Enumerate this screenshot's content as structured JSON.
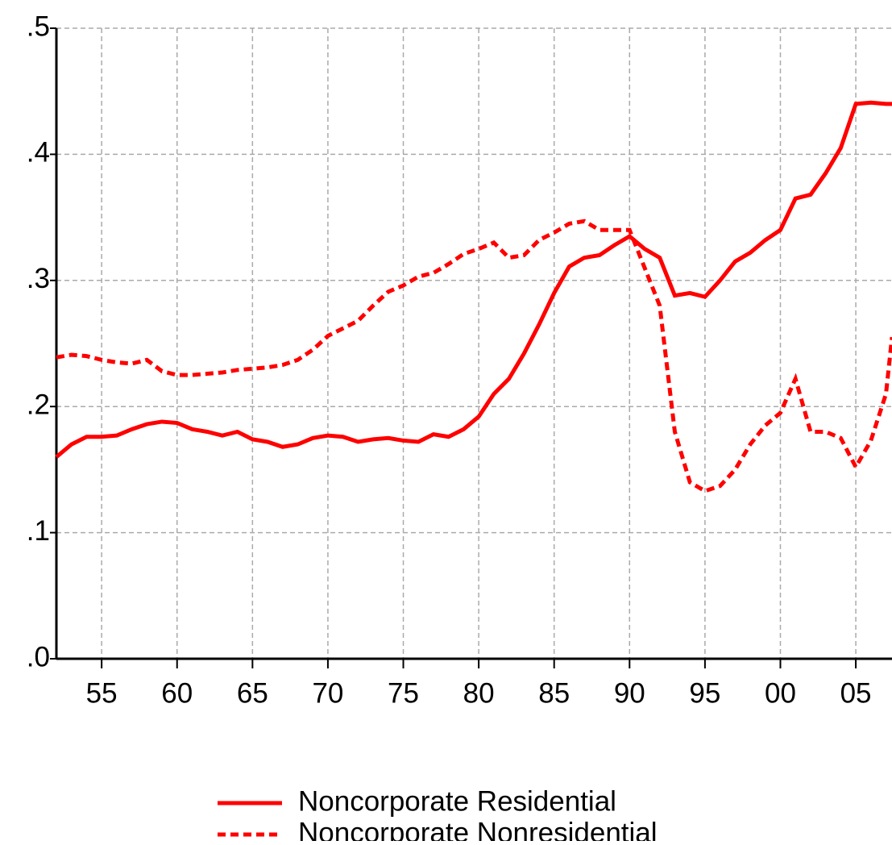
{
  "chart_data": {
    "type": "line",
    "x": [
      1952,
      1953,
      1954,
      1955,
      1956,
      1957,
      1958,
      1959,
      1960,
      1961,
      1962,
      1963,
      1964,
      1965,
      1966,
      1967,
      1968,
      1969,
      1970,
      1971,
      1972,
      1973,
      1974,
      1975,
      1976,
      1977,
      1978,
      1979,
      1980,
      1981,
      1982,
      1983,
      1984,
      1985,
      1986,
      1987,
      1988,
      1989,
      1990,
      1991,
      1992,
      1993,
      1994,
      1995,
      1996,
      1997,
      1998,
      1999,
      2000,
      2001,
      2002,
      2003,
      2004,
      2005,
      2006,
      2007,
      2007.4
    ],
    "series": [
      {
        "name": "Noncorporate Residential",
        "color": "#ff0000",
        "dash": false,
        "values": [
          0.16,
          0.17,
          0.176,
          0.176,
          0.177,
          0.182,
          0.186,
          0.188,
          0.187,
          0.182,
          0.18,
          0.177,
          0.18,
          0.174,
          0.172,
          0.168,
          0.17,
          0.175,
          0.177,
          0.176,
          0.172,
          0.174,
          0.175,
          0.173,
          0.172,
          0.178,
          0.176,
          0.182,
          0.192,
          0.21,
          0.222,
          0.242,
          0.265,
          0.29,
          0.311,
          0.318,
          0.32,
          0.328,
          0.335,
          0.325,
          0.318,
          0.288,
          0.29,
          0.287,
          0.3,
          0.315,
          0.322,
          0.332,
          0.34,
          0.365,
          0.368,
          0.385,
          0.405,
          0.44,
          0.441,
          0.44,
          0.44
        ]
      },
      {
        "name": "Noncorporate Nonresidential",
        "color": "#ff0000",
        "dash": true,
        "values": [
          0.239,
          0.241,
          0.24,
          0.237,
          0.235,
          0.234,
          0.237,
          0.228,
          0.225,
          0.225,
          0.226,
          0.227,
          0.229,
          0.23,
          0.231,
          0.233,
          0.237,
          0.245,
          0.256,
          0.262,
          0.268,
          0.28,
          0.291,
          0.296,
          0.303,
          0.306,
          0.313,
          0.321,
          0.325,
          0.33,
          0.318,
          0.32,
          0.332,
          0.338,
          0.345,
          0.347,
          0.34,
          0.34,
          0.34,
          0.31,
          0.28,
          0.18,
          0.14,
          0.133,
          0.137,
          0.15,
          0.17,
          0.185,
          0.195,
          0.222,
          0.18,
          0.18,
          0.175,
          0.152,
          0.173,
          0.21,
          0.255
        ]
      }
    ],
    "xlim": [
      1952,
      2007.4
    ],
    "ylim": [
      0,
      0.5
    ],
    "xticks": [
      {
        "value": 1955,
        "label": "55"
      },
      {
        "value": 1960,
        "label": "60"
      },
      {
        "value": 1965,
        "label": "65"
      },
      {
        "value": 1970,
        "label": "70"
      },
      {
        "value": 1975,
        "label": "75"
      },
      {
        "value": 1980,
        "label": "80"
      },
      {
        "value": 1985,
        "label": "85"
      },
      {
        "value": 1990,
        "label": "90"
      },
      {
        "value": 1995,
        "label": "95"
      },
      {
        "value": 2000,
        "label": "00"
      },
      {
        "value": 2005,
        "label": "05"
      }
    ],
    "yticks": [
      {
        "value": 0,
        "label": ".0"
      },
      {
        "value": 0.1,
        "label": ".1"
      },
      {
        "value": 0.2,
        "label": ".2"
      },
      {
        "value": 0.3,
        "label": ".3"
      },
      {
        "value": 0.4,
        "label": ".4"
      },
      {
        "value": 0.5,
        "label": ".5"
      }
    ],
    "grid": true
  }
}
